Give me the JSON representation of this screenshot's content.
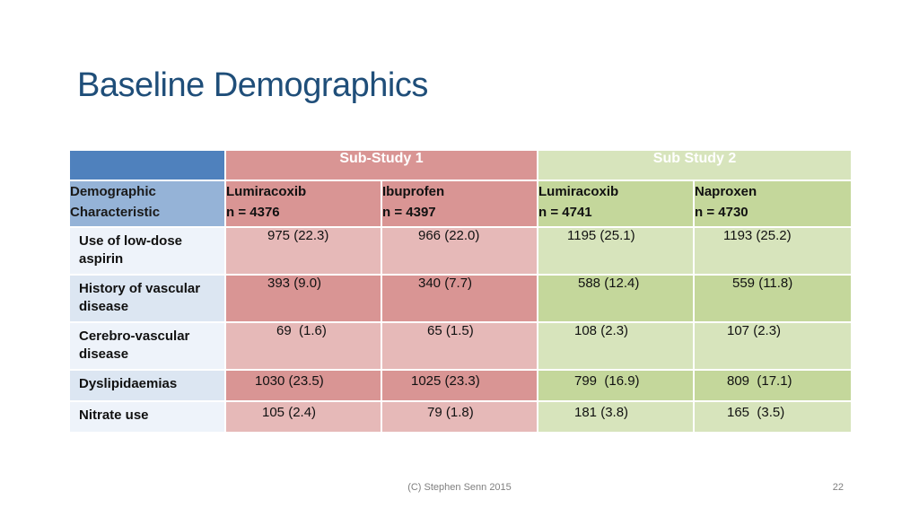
{
  "title": "Baseline Demographics",
  "table": {
    "sub_study_1": "Sub-Study 1",
    "sub_study_2": "Sub Study 2",
    "char_header_line1": "Demographic",
    "char_header_line2": "Characteristic",
    "arms": [
      {
        "name": "Lumiracoxib",
        "n": "n = 4376"
      },
      {
        "name": "Ibuprofen",
        "n": "n = 4397"
      },
      {
        "name": "Lumiracoxib",
        "n": "n = 4741"
      },
      {
        "name": "Naproxen",
        "n": "n = 4730"
      }
    ],
    "rows": [
      {
        "label": "Use of low-dose aspirin",
        "values": [
          "975 (22.3)",
          "966 (22.0)",
          "1195 (25.1)",
          "1193 (25.2)"
        ]
      },
      {
        "label": "History of vascular disease",
        "values": [
          "393 (9.0)",
          "340 (7.7)",
          "588 (12.4)",
          "559 (11.8)"
        ]
      },
      {
        "label": "Cerebro-vascular disease",
        "values": [
          "69  (1.6)",
          "65 (1.5)",
          "108 (2.3)",
          "107 (2.3)"
        ]
      },
      {
        "label": "Dyslipidaemias",
        "values": [
          "1030 (23.5)",
          "1025 (23.3)",
          "799  (16.9)",
          "809  (17.1)"
        ]
      },
      {
        "label": "Nitrate use",
        "values": [
          "105 (2.4)",
          "79 (1.8)",
          "181 (3.8)",
          "165  (3.5)"
        ]
      }
    ]
  },
  "footer": "(C) Stephen Senn 2015",
  "page_number": "22"
}
